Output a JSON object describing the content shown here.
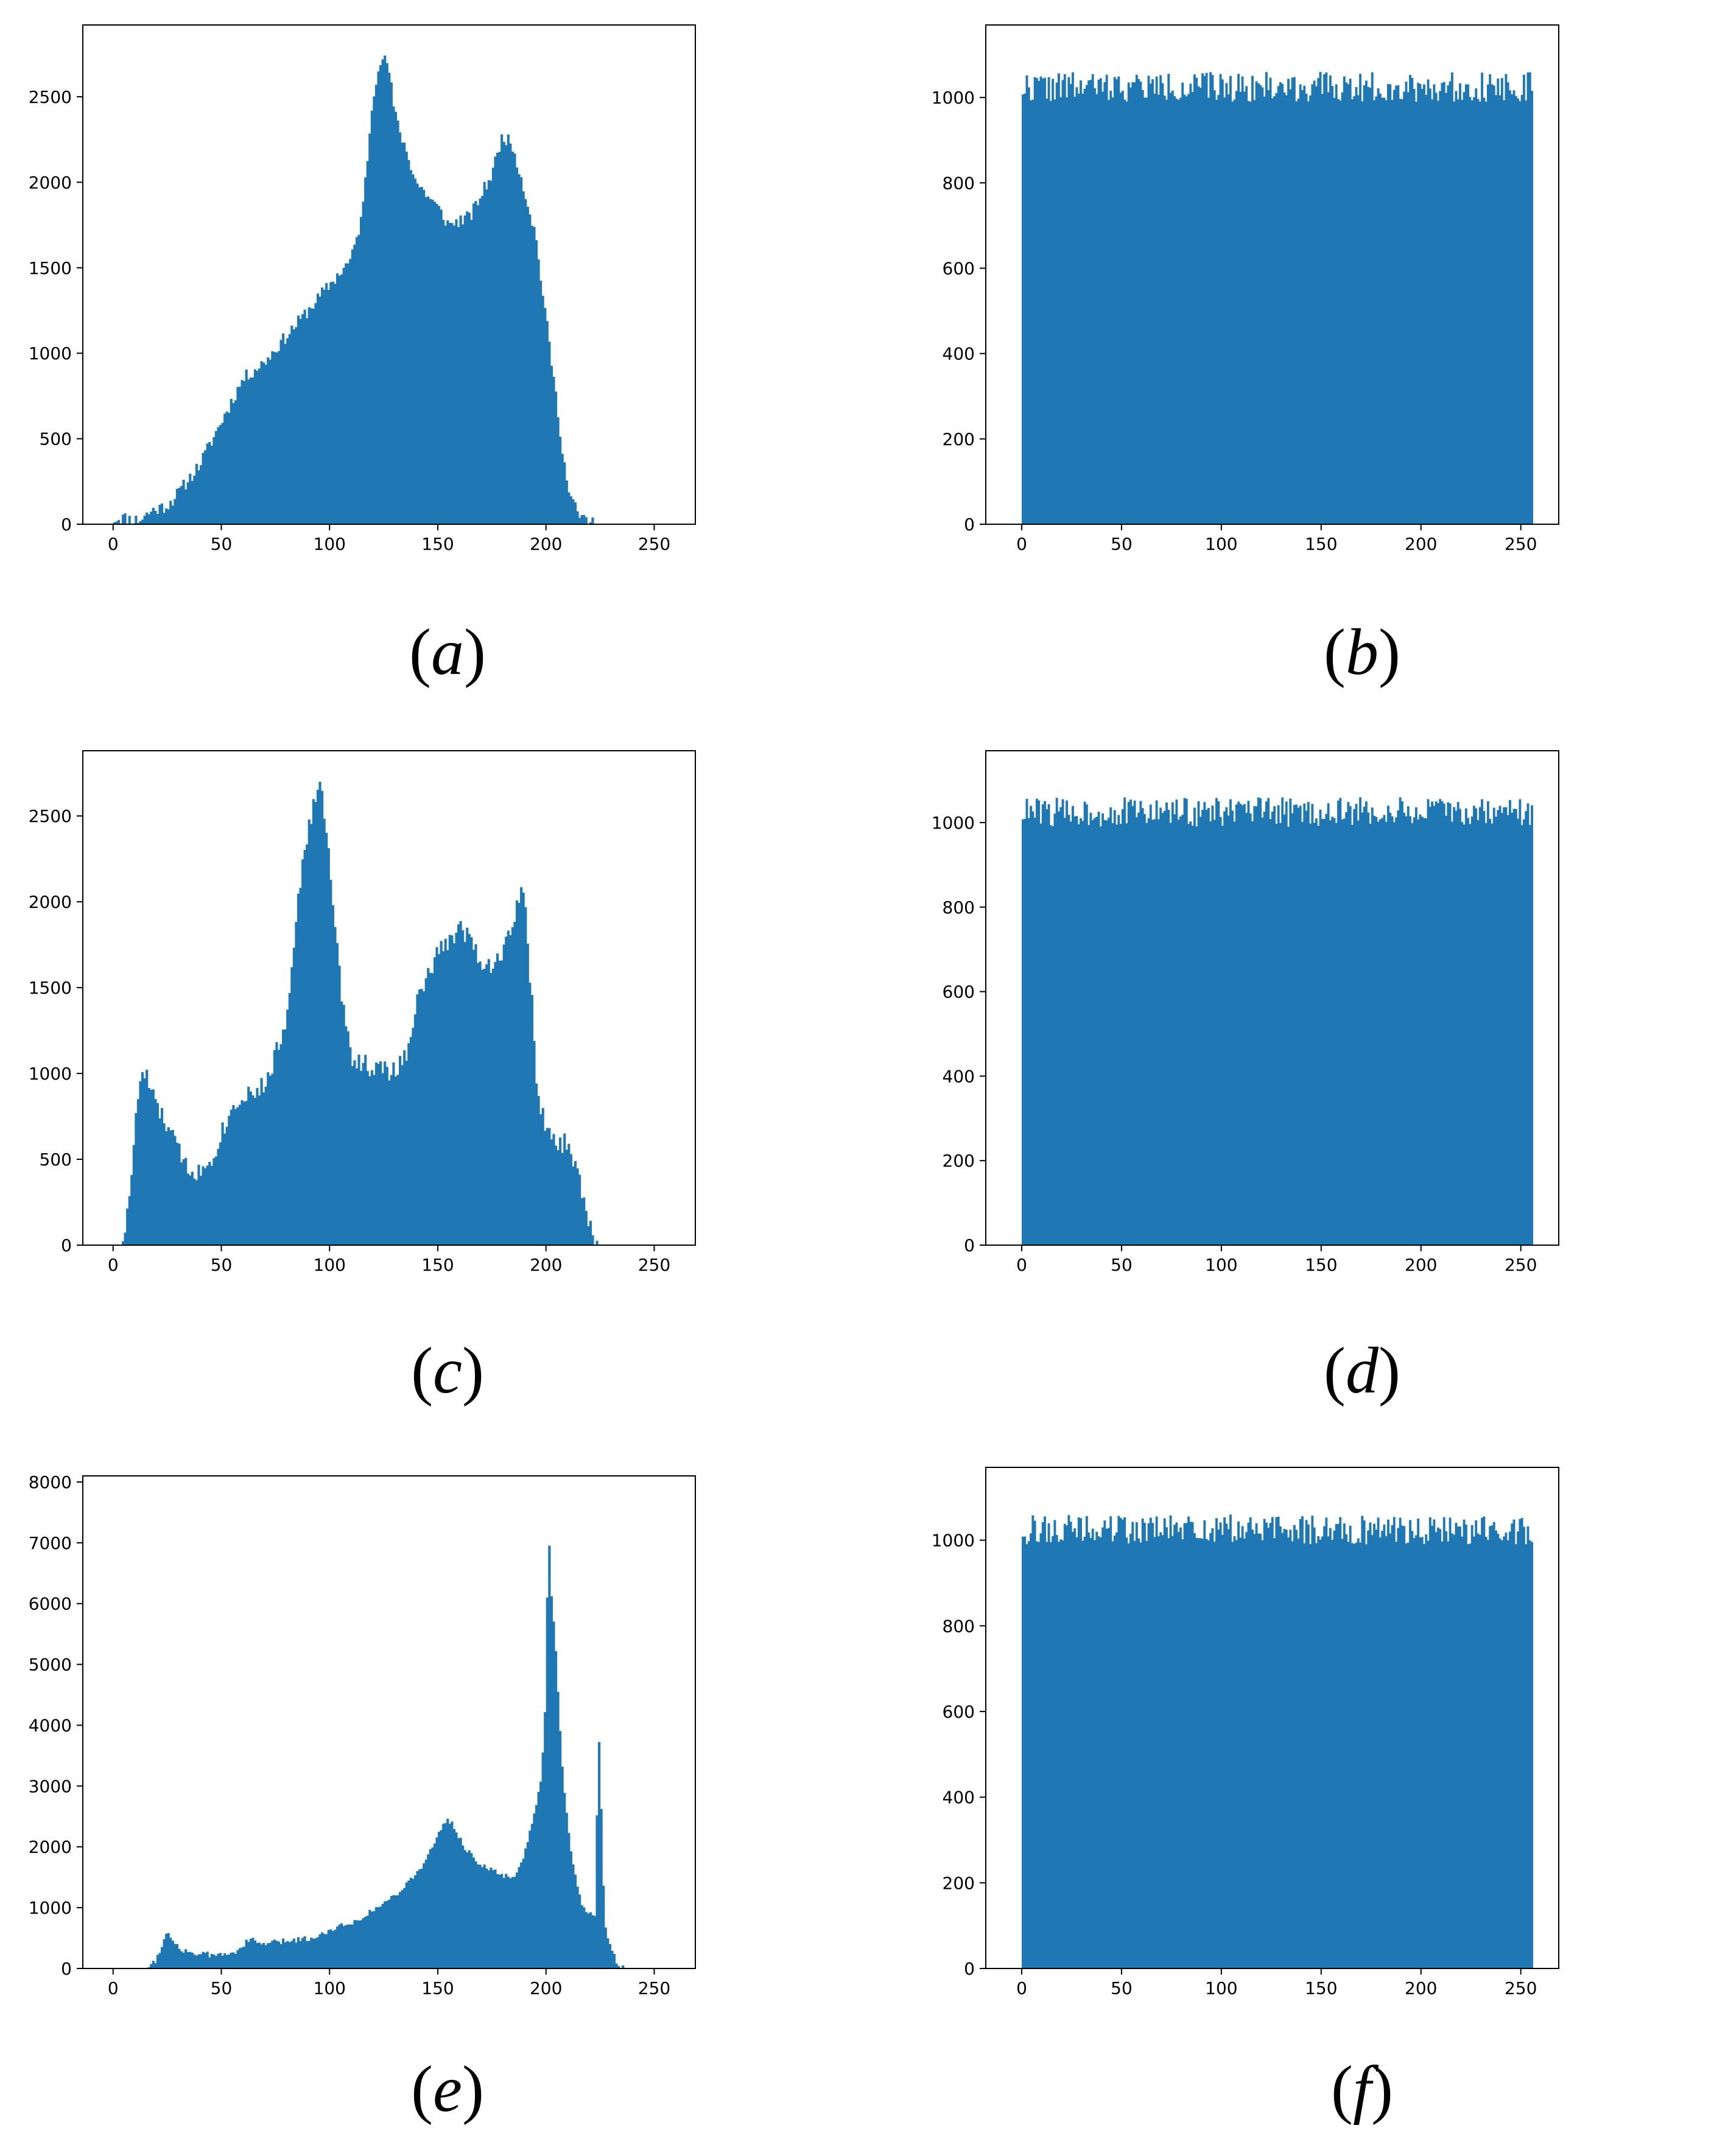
{
  "colors": {
    "bar": "#1f77b4",
    "axis": "#000000",
    "background": "#ffffff"
  },
  "chart_data": [
    {
      "id": "a",
      "type": "bar",
      "caption": "a",
      "xlim": [
        -14,
        269
      ],
      "ylim": [
        0,
        2920
      ],
      "xticks": [
        0,
        50,
        100,
        150,
        200,
        250
      ],
      "yticks": [
        0,
        500,
        1000,
        1500,
        2000,
        2500
      ],
      "bins": 256,
      "noise": 40,
      "seed": 11,
      "profile": [
        [
          0,
          30
        ],
        [
          4,
          40
        ],
        [
          8,
          30
        ],
        [
          12,
          25
        ],
        [
          18,
          80
        ],
        [
          25,
          110
        ],
        [
          30,
          180
        ],
        [
          40,
          350
        ],
        [
          50,
          600
        ],
        [
          60,
          850
        ],
        [
          70,
          950
        ],
        [
          80,
          1100
        ],
        [
          90,
          1250
        ],
        [
          100,
          1400
        ],
        [
          110,
          1550
        ],
        [
          115,
          1800
        ],
        [
          120,
          2500
        ],
        [
          123,
          2720
        ],
        [
          127,
          2700
        ],
        [
          130,
          2400
        ],
        [
          140,
          2000
        ],
        [
          150,
          1850
        ],
        [
          155,
          1750
        ],
        [
          165,
          1800
        ],
        [
          175,
          2050
        ],
        [
          180,
          2280
        ],
        [
          185,
          2200
        ],
        [
          190,
          1950
        ],
        [
          195,
          1700
        ],
        [
          198,
          1400
        ],
        [
          202,
          1000
        ],
        [
          206,
          600
        ],
        [
          210,
          200
        ],
        [
          215,
          50
        ],
        [
          222,
          0
        ],
        [
          255,
          0
        ]
      ]
    },
    {
      "id": "b",
      "type": "bar",
      "caption": "b",
      "xlim": [
        -18,
        269
      ],
      "ylim": [
        0,
        1170
      ],
      "xticks": [
        0,
        50,
        100,
        150,
        200,
        250
      ],
      "yticks": [
        0,
        200,
        400,
        600,
        800,
        1000
      ],
      "bins": 256,
      "noise": 35,
      "seed": 22,
      "profile": [
        [
          0,
          1025
        ],
        [
          255,
          1025
        ]
      ]
    },
    {
      "id": "c",
      "type": "bar",
      "caption": "c",
      "xlim": [
        -14,
        269
      ],
      "ylim": [
        0,
        2880
      ],
      "xticks": [
        0,
        50,
        100,
        150,
        200,
        250
      ],
      "yticks": [
        0,
        500,
        1000,
        1500,
        2000,
        2500
      ],
      "bins": 256,
      "noise": 60,
      "seed": 33,
      "profile": [
        [
          0,
          0
        ],
        [
          3,
          0
        ],
        [
          6,
          100
        ],
        [
          9,
          500
        ],
        [
          12,
          950
        ],
        [
          15,
          1000
        ],
        [
          20,
          800
        ],
        [
          25,
          700
        ],
        [
          30,
          550
        ],
        [
          35,
          450
        ],
        [
          40,
          420
        ],
        [
          45,
          500
        ],
        [
          50,
          650
        ],
        [
          55,
          800
        ],
        [
          60,
          880
        ],
        [
          70,
          920
        ],
        [
          80,
          1300
        ],
        [
          85,
          2000
        ],
        [
          90,
          2400
        ],
        [
          95,
          2700
        ],
        [
          98,
          2500
        ],
        [
          102,
          1900
        ],
        [
          106,
          1400
        ],
        [
          110,
          1100
        ],
        [
          120,
          1030
        ],
        [
          130,
          1010
        ],
        [
          135,
          1100
        ],
        [
          140,
          1400
        ],
        [
          150,
          1700
        ],
        [
          160,
          1850
        ],
        [
          165,
          1800
        ],
        [
          170,
          1650
        ],
        [
          175,
          1630
        ],
        [
          180,
          1700
        ],
        [
          185,
          1900
        ],
        [
          188,
          2080
        ],
        [
          190,
          2000
        ],
        [
          193,
          1500
        ],
        [
          196,
          900
        ],
        [
          200,
          650
        ],
        [
          205,
          580
        ],
        [
          210,
          600
        ],
        [
          215,
          400
        ],
        [
          220,
          100
        ],
        [
          224,
          0
        ],
        [
          255,
          0
        ]
      ]
    },
    {
      "id": "d",
      "type": "bar",
      "caption": "d",
      "xlim": [
        -18,
        269
      ],
      "ylim": [
        0,
        1170
      ],
      "xticks": [
        0,
        50,
        100,
        150,
        200,
        250
      ],
      "yticks": [
        0,
        200,
        400,
        600,
        800,
        1000
      ],
      "bins": 256,
      "noise": 35,
      "seed": 44,
      "profile": [
        [
          0,
          1025
        ],
        [
          255,
          1025
        ]
      ]
    },
    {
      "id": "e",
      "type": "bar",
      "caption": "e",
      "xlim": [
        -14,
        269
      ],
      "ylim": [
        0,
        8100
      ],
      "xticks": [
        0,
        50,
        100,
        150,
        200,
        250
      ],
      "yticks": [
        0,
        1000,
        2000,
        3000,
        4000,
        5000,
        6000,
        7000,
        8000
      ],
      "bins": 256,
      "noise": 50,
      "seed": 55,
      "profile": [
        [
          0,
          0
        ],
        [
          15,
          0
        ],
        [
          20,
          150
        ],
        [
          23,
          450
        ],
        [
          25,
          580
        ],
        [
          28,
          450
        ],
        [
          32,
          300
        ],
        [
          40,
          230
        ],
        [
          50,
          220
        ],
        [
          55,
          250
        ],
        [
          60,
          380
        ],
        [
          63,
          480
        ],
        [
          68,
          400
        ],
        [
          80,
          450
        ],
        [
          95,
          520
        ],
        [
          100,
          650
        ],
        [
          110,
          750
        ],
        [
          120,
          950
        ],
        [
          130,
          1200
        ],
        [
          140,
          1550
        ],
        [
          148,
          2000
        ],
        [
          152,
          2350
        ],
        [
          155,
          2450
        ],
        [
          158,
          2300
        ],
        [
          162,
          2000
        ],
        [
          170,
          1700
        ],
        [
          178,
          1550
        ],
        [
          185,
          1500
        ],
        [
          190,
          1850
        ],
        [
          195,
          2600
        ],
        [
          198,
          3200
        ],
        [
          200,
          4500
        ],
        [
          201,
          7600
        ],
        [
          202,
          6300
        ],
        [
          204,
          5500
        ],
        [
          206,
          4200
        ],
        [
          208,
          3000
        ],
        [
          212,
          1800
        ],
        [
          216,
          1100
        ],
        [
          220,
          900
        ],
        [
          223,
          900
        ],
        [
          224,
          4200
        ],
        [
          225,
          3200
        ],
        [
          227,
          700
        ],
        [
          230,
          300
        ],
        [
          233,
          80
        ],
        [
          237,
          0
        ],
        [
          255,
          0
        ]
      ]
    },
    {
      "id": "f",
      "type": "bar",
      "caption": "f",
      "xlim": [
        -18,
        269
      ],
      "ylim": [
        0,
        1170
      ],
      "xticks": [
        0,
        50,
        100,
        150,
        200,
        250
      ],
      "yticks": [
        0,
        200,
        400,
        600,
        800,
        1000
      ],
      "bins": 256,
      "noise": 35,
      "seed": 66,
      "profile": [
        [
          0,
          1025
        ],
        [
          255,
          1025
        ]
      ]
    }
  ]
}
